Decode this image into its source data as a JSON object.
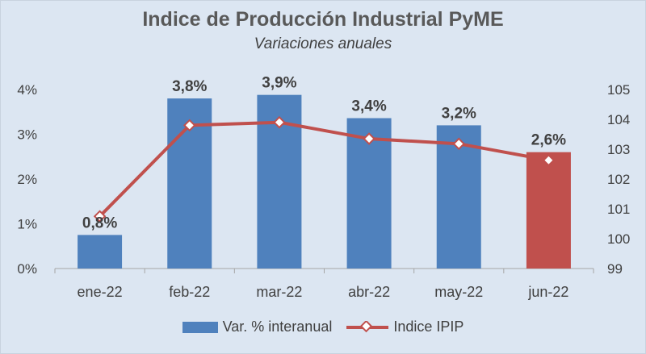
{
  "chart_data": {
    "type": "bar",
    "title": "Indice de Producción Industrial PyME",
    "subtitle": "Variaciones anuales",
    "categories": [
      "ene-22",
      "feb-22",
      "mar-22",
      "abr-22",
      "may-22",
      "jun-22"
    ],
    "series": [
      {
        "name": "Var. % interanual",
        "kind": "bar",
        "axis": "left",
        "values": [
          0.75,
          3.8,
          3.88,
          3.36,
          3.2,
          2.6
        ],
        "labels": [
          "0,8%",
          "3,8%",
          "3,9%",
          "3,4%",
          "3,2%",
          "2,6%"
        ],
        "colors": [
          "#4f81bd",
          "#4f81bd",
          "#4f81bd",
          "#4f81bd",
          "#4f81bd",
          "#c0504d"
        ]
      },
      {
        "name": "Indice IPIP",
        "kind": "line",
        "axis": "right",
        "values": [
          100.75,
          103.8,
          103.9,
          103.35,
          103.18,
          102.63
        ],
        "color": "#c0504d"
      }
    ],
    "y_left": {
      "ylim": [
        0,
        4
      ],
      "ticks": [
        0,
        1,
        2,
        3,
        4
      ],
      "tick_labels": [
        "0%",
        "1%",
        "2%",
        "3%",
        "4%"
      ]
    },
    "y_right": {
      "ylim": [
        99,
        105
      ],
      "ticks": [
        99,
        100,
        101,
        102,
        103,
        104,
        105
      ],
      "tick_labels": [
        "99",
        "100",
        "101",
        "102",
        "103",
        "104",
        "105"
      ]
    },
    "grid": false,
    "legend_position": "bottom"
  }
}
